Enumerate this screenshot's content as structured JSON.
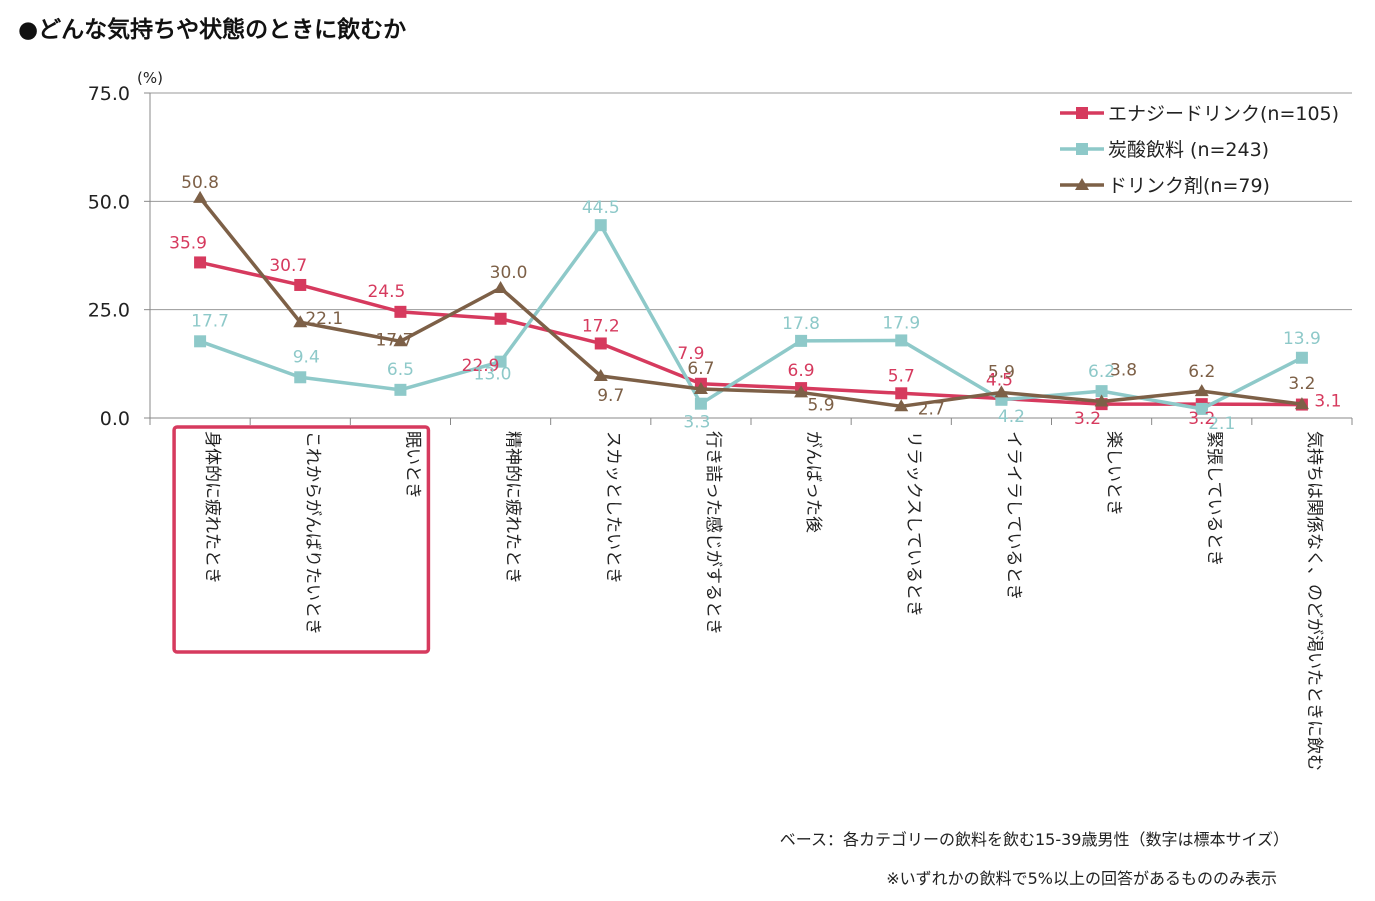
{
  "page": {
    "heading": "●どんな気持ちや状態のときに飲むか",
    "footnotes": [
      "ベース：各カテゴリーの飲料を飲む15-39歳男性（数字は標本サイズ）",
      "※いずれかの飲料で5%以上の回答があるもののみ表示"
    ]
  },
  "chart_data": {
    "type": "line",
    "title": "●どんな気持ちや状態のときに飲むか",
    "ylabel": "(%)",
    "xlabel": "",
    "ylim": [
      0,
      75
    ],
    "yticks": [
      "75.0",
      "50.0",
      "25.0",
      "0.0"
    ],
    "grid": true,
    "legend_position": "top-right",
    "categories": [
      "身体的に疲れたとき",
      "これからがんばりたいとき",
      "眠いとき",
      "精神的に疲れたとき",
      "スカッとしたいとき",
      "行き詰った感じがするとき",
      "がんばった後",
      "リラックスしているとき",
      "イライラしているとき",
      "楽しいとき",
      "緊張しているとき",
      "気持ちは関係なく、のどが渇いたときに飲む"
    ],
    "series": [
      {
        "name": "エナジードリンク(n=105)",
        "color": "#d63a5e",
        "marker": "square",
        "values": [
          35.9,
          30.7,
          24.5,
          22.9,
          17.2,
          7.9,
          6.9,
          5.7,
          4.5,
          3.2,
          3.2,
          3.1
        ]
      },
      {
        "name": "炭酸飲料 (n=243)",
        "color": "#8ec9c9",
        "marker": "square",
        "values": [
          17.7,
          9.4,
          6.5,
          13.0,
          44.5,
          3.3,
          17.8,
          17.9,
          4.2,
          6.2,
          2.1,
          13.9
        ]
      },
      {
        "name": "ドリンク剤(n=79)",
        "color": "#7d6047",
        "marker": "triangle",
        "values": [
          50.8,
          22.1,
          17.7,
          30.0,
          9.7,
          6.7,
          5.9,
          2.7,
          5.9,
          3.8,
          6.2,
          3.2
        ]
      }
    ],
    "highlight": {
      "categories": [
        0,
        1,
        2
      ],
      "color": "#d63a5e"
    }
  }
}
